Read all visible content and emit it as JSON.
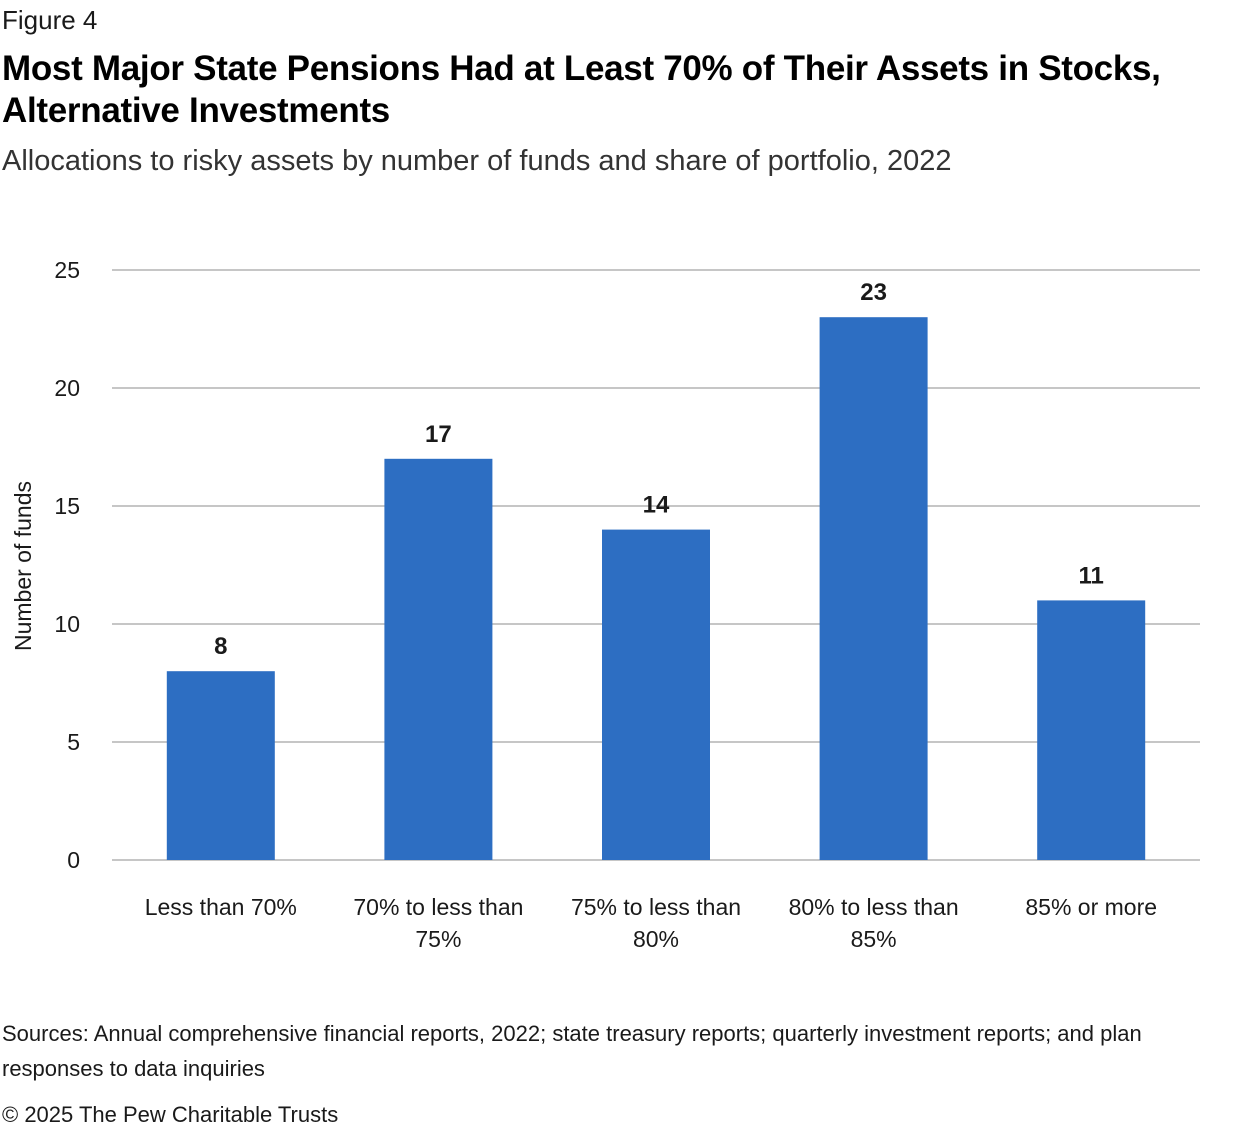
{
  "figure_label": "Figure 4",
  "title": "Most Major State Pensions Had at Least 70% of Their Assets in Stocks, Alternative Investments",
  "subtitle": "Allocations to risky assets by number of funds and share of portfolio, 2022",
  "sources": "Sources: Annual comprehensive financial reports, 2022; state treasury reports; quarterly investment reports; and plan responses to data inquiries",
  "copyright": "© 2025 The Pew Charitable Trusts",
  "chart_data": {
    "type": "bar",
    "title": "",
    "xlabel": "",
    "ylabel": "Number of funds",
    "categories": [
      [
        "Less than 70%"
      ],
      [
        "70% to less than",
        "75%"
      ],
      [
        "75% to less than",
        "80%"
      ],
      [
        "80% to less than",
        "85%"
      ],
      [
        "85% or more"
      ]
    ],
    "values": [
      8,
      17,
      14,
      23,
      11
    ],
    "data_labels": [
      "8",
      "17",
      "14",
      "23",
      "11"
    ],
    "ylim": [
      0,
      25
    ],
    "yticks": [
      0,
      5,
      10,
      15,
      20,
      25
    ],
    "grid": true,
    "legend": "none",
    "colors": {
      "bar": "#2d6ec2",
      "grid": "#b3b3b3",
      "text": "#1a1a1a"
    }
  }
}
